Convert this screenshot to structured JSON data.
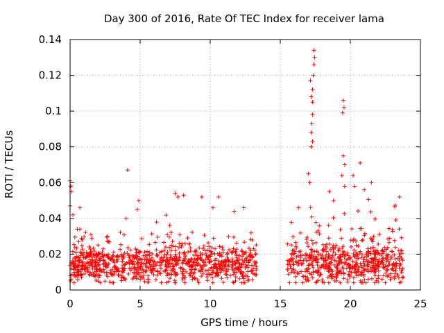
{
  "chart_data": {
    "type": "scatter",
    "title": "Day 300 of 2016, Rate Of TEC Index for receiver lama",
    "xlabel": "GPS time / hours",
    "ylabel": "ROTI / TECUs",
    "xlim": [
      0,
      25
    ],
    "ylim": [
      0,
      0.14
    ],
    "xticks": [
      0,
      5,
      10,
      15,
      20,
      25
    ],
    "xtick_labels": [
      "0",
      "5",
      "10",
      "15",
      "20",
      "25"
    ],
    "yticks": [
      0,
      0.02,
      0.04,
      0.06,
      0.08,
      0.1,
      0.12,
      0.14
    ],
    "ytick_labels": [
      "0",
      "0.02",
      "0.04",
      "0.06",
      "0.08",
      "0.1",
      "0.12",
      "0.14"
    ],
    "grid": true,
    "marker": "+",
    "color": "#ff0000",
    "series": [
      {
        "name": "ROTI",
        "segments": [
          {
            "x_start": 0.0,
            "x_end": 13.3,
            "baseline": 0.014,
            "spread": 0.006
          },
          {
            "x_start": 15.5,
            "x_end": 23.8,
            "baseline": 0.015,
            "spread": 0.007
          }
        ],
        "outliers": [
          {
            "x": 0.0,
            "y": 0.061
          },
          {
            "x": 0.05,
            "y": 0.058
          },
          {
            "x": 0.1,
            "y": 0.055
          },
          {
            "x": 0.0,
            "y": 0.047
          },
          {
            "x": 0.2,
            "y": 0.042
          },
          {
            "x": 0.7,
            "y": 0.046
          },
          {
            "x": 4.1,
            "y": 0.067
          },
          {
            "x": 4.0,
            "y": 0.04
          },
          {
            "x": 4.9,
            "y": 0.05
          },
          {
            "x": 4.8,
            "y": 0.045
          },
          {
            "x": 7.5,
            "y": 0.054
          },
          {
            "x": 7.7,
            "y": 0.052
          },
          {
            "x": 8.1,
            "y": 0.053
          },
          {
            "x": 9.4,
            "y": 0.052
          },
          {
            "x": 10.6,
            "y": 0.052
          },
          {
            "x": 10.2,
            "y": 0.046
          },
          {
            "x": 11.7,
            "y": 0.044
          },
          {
            "x": 12.4,
            "y": 0.046
          },
          {
            "x": 16.3,
            "y": 0.046
          },
          {
            "x": 17.1,
            "y": 0.06
          },
          {
            "x": 17.0,
            "y": 0.065
          },
          {
            "x": 17.2,
            "y": 0.08
          },
          {
            "x": 17.3,
            "y": 0.083
          },
          {
            "x": 17.25,
            "y": 0.093
          },
          {
            "x": 17.3,
            "y": 0.098
          },
          {
            "x": 17.2,
            "y": 0.108
          },
          {
            "x": 17.3,
            "y": 0.112
          },
          {
            "x": 17.35,
            "y": 0.12
          },
          {
            "x": 17.4,
            "y": 0.126
          },
          {
            "x": 17.45,
            "y": 0.13
          },
          {
            "x": 17.4,
            "y": 0.134
          },
          {
            "x": 17.15,
            "y": 0.117
          },
          {
            "x": 17.3,
            "y": 0.105
          },
          {
            "x": 17.2,
            "y": 0.088
          },
          {
            "x": 19.5,
            "y": 0.106
          },
          {
            "x": 19.55,
            "y": 0.102
          },
          {
            "x": 19.45,
            "y": 0.099
          },
          {
            "x": 19.5,
            "y": 0.075
          },
          {
            "x": 19.6,
            "y": 0.07
          },
          {
            "x": 19.4,
            "y": 0.064
          },
          {
            "x": 19.6,
            "y": 0.058
          },
          {
            "x": 20.7,
            "y": 0.071
          },
          {
            "x": 20.2,
            "y": 0.064
          },
          {
            "x": 20.3,
            "y": 0.058
          },
          {
            "x": 21.0,
            "y": 0.056
          },
          {
            "x": 21.5,
            "y": 0.06
          },
          {
            "x": 23.5,
            "y": 0.052
          },
          {
            "x": 18.5,
            "y": 0.055
          },
          {
            "x": 18.8,
            "y": 0.05
          }
        ]
      }
    ]
  }
}
